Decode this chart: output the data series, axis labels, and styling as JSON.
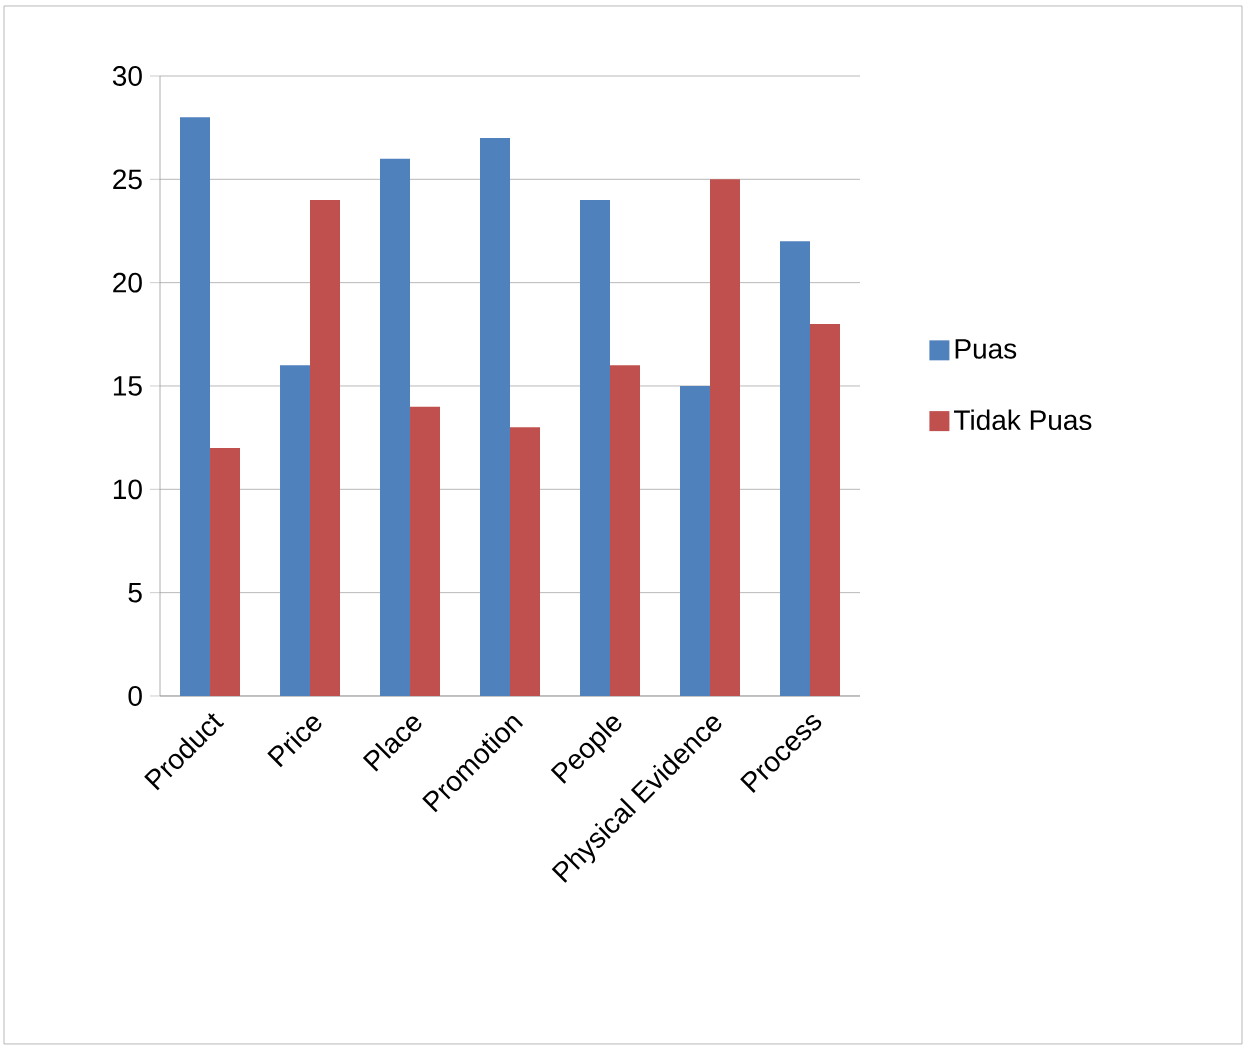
{
  "chart_data": {
    "type": "bar",
    "categories": [
      "Product",
      "Price",
      "Place",
      "Promotion",
      "People",
      "Physical Evidence",
      "Process"
    ],
    "series": [
      {
        "name": "Puas",
        "color": "#4f81bd",
        "values": [
          28,
          16,
          26,
          27,
          24,
          15,
          22
        ]
      },
      {
        "name": "Tidak Puas",
        "color": "#c0504d",
        "values": [
          12,
          24,
          14,
          13,
          16,
          25,
          18
        ]
      }
    ],
    "ylim": [
      0,
      30
    ],
    "yticks": [
      0,
      5,
      10,
      15,
      20,
      25,
      30
    ],
    "grid": "y",
    "legend": "right"
  }
}
